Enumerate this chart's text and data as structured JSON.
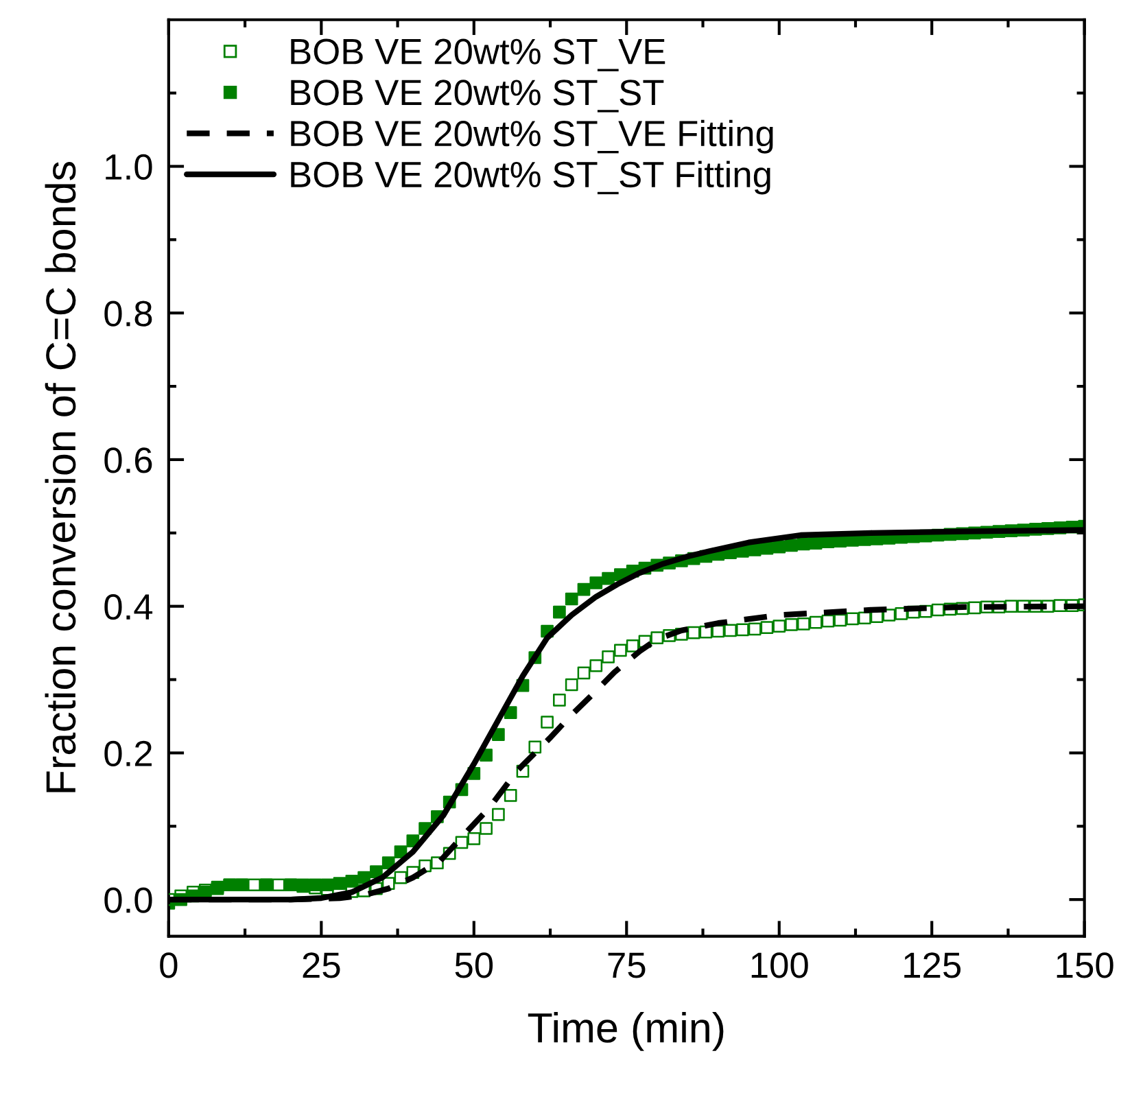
{
  "chart_data": {
    "type": "scatter",
    "xlabel": "Time (min)",
    "ylabel": "Fraction conversion of C=C bonds",
    "xlim": [
      0,
      150
    ],
    "ylim": [
      -0.05,
      1.2
    ],
    "xticks": [
      0,
      25,
      50,
      75,
      100,
      125,
      150
    ],
    "yticks": [
      {
        "value": 0,
        "label": "0.0"
      },
      {
        "value": 0.2,
        "label": "0.2"
      },
      {
        "value": 0.4,
        "label": "0.4"
      },
      {
        "value": 0.6,
        "label": "0.6"
      },
      {
        "value": 0.8,
        "label": "0.8"
      },
      {
        "value": 1.0,
        "label": "1.0"
      }
    ],
    "grid": false,
    "legend": "top left",
    "series": [
      {
        "name": "BOB VE 20wt% ST_VE",
        "marker": "square",
        "color": "#008000",
        "x": [
          0,
          2,
          4,
          6,
          8,
          10,
          12,
          14,
          16,
          18,
          20,
          22,
          24,
          26,
          30,
          32,
          34,
          36,
          38,
          40,
          42,
          44,
          46,
          48,
          50,
          52,
          54,
          56,
          58,
          60,
          62,
          64,
          66,
          68,
          70,
          72,
          74,
          76,
          78,
          80,
          82,
          84,
          86,
          88,
          90,
          92,
          94,
          96,
          98,
          100,
          102,
          104,
          106,
          108,
          110,
          112,
          114,
          116,
          118,
          120,
          122,
          124,
          126,
          128,
          130,
          132,
          134,
          136,
          138,
          140,
          142,
          144,
          146,
          148,
          150
        ],
        "values": [
          0.0,
          0.005,
          0.01,
          0.013,
          0.017,
          0.02,
          0.02,
          0.02,
          0.02,
          0.02,
          0.02,
          0.018,
          0.016,
          0.014,
          0.011,
          0.012,
          0.015,
          0.022,
          0.03,
          0.037,
          0.046,
          0.05,
          0.063,
          0.078,
          0.083,
          0.097,
          0.116,
          0.142,
          0.175,
          0.208,
          0.242,
          0.272,
          0.293,
          0.309,
          0.319,
          0.331,
          0.34,
          0.346,
          0.352,
          0.357,
          0.36,
          0.362,
          0.364,
          0.365,
          0.366,
          0.367,
          0.368,
          0.369,
          0.371,
          0.373,
          0.375,
          0.376,
          0.378,
          0.38,
          0.381,
          0.383,
          0.384,
          0.386,
          0.388,
          0.39,
          0.392,
          0.393,
          0.395,
          0.396,
          0.397,
          0.398,
          0.399,
          0.399,
          0.4,
          0.4,
          0.4,
          0.4,
          0.401,
          0.401,
          0.402
        ]
      },
      {
        "name": "BOB VE 20wt% ST_ST",
        "marker": "square",
        "color": "#008000",
        "x": [
          0,
          2,
          4,
          6,
          8,
          10,
          12,
          16,
          20,
          22,
          24,
          26,
          28,
          30,
          32,
          34,
          36,
          38,
          40,
          42,
          44,
          46,
          48,
          50,
          52,
          54,
          56,
          58,
          60,
          62,
          64,
          66,
          68,
          70,
          72,
          74,
          76,
          78,
          80,
          82,
          84,
          86,
          88,
          90,
          92,
          94,
          96,
          98,
          100,
          102,
          104,
          106,
          108,
          110,
          112,
          114,
          116,
          118,
          120,
          122,
          124,
          126,
          128,
          130,
          132,
          134,
          136,
          138,
          140,
          142,
          144,
          146,
          148,
          150
        ],
        "values": [
          -0.005,
          0.0,
          0.005,
          0.01,
          0.015,
          0.02,
          0.02,
          0.02,
          0.02,
          0.02,
          0.02,
          0.02,
          0.022,
          0.025,
          0.03,
          0.038,
          0.05,
          0.065,
          0.08,
          0.097,
          0.113,
          0.133,
          0.15,
          0.172,
          0.197,
          0.225,
          0.255,
          0.292,
          0.33,
          0.366,
          0.392,
          0.41,
          0.423,
          0.432,
          0.438,
          0.443,
          0.448,
          0.452,
          0.456,
          0.459,
          0.462,
          0.465,
          0.468,
          0.471,
          0.473,
          0.475,
          0.477,
          0.479,
          0.481,
          0.483,
          0.485,
          0.486,
          0.488,
          0.489,
          0.49,
          0.491,
          0.492,
          0.493,
          0.494,
          0.495,
          0.496,
          0.497,
          0.498,
          0.499,
          0.5,
          0.501,
          0.502,
          0.503,
          0.504,
          0.505,
          0.506,
          0.507,
          0.508,
          0.509
        ]
      },
      {
        "name": "BOB VE 20wt% ST_VE Fitting",
        "type": "line",
        "line_style": "dashed",
        "color": "#000000",
        "x": [
          0,
          20,
          28,
          32,
          36,
          40,
          44.5,
          48,
          52.7,
          57,
          62.4,
          66,
          69.7,
          73,
          77.2,
          80,
          84,
          90,
          100,
          115,
          130,
          150
        ],
        "values": [
          0,
          0,
          0.002,
          0.006,
          0.015,
          0.03,
          0.053,
          0.085,
          0.127,
          0.175,
          0.22,
          0.252,
          0.282,
          0.31,
          0.339,
          0.355,
          0.367,
          0.377,
          0.388,
          0.395,
          0.399,
          0.4
        ]
      },
      {
        "name": "BOB VE 20wt% ST_ST Fitting",
        "type": "line",
        "line_style": "solid",
        "color": "#000000",
        "x": [
          0,
          10,
          20,
          25,
          30,
          35,
          40,
          45,
          50,
          55,
          58,
          62,
          66,
          70,
          73.5,
          77,
          81,
          85,
          88.5,
          95,
          103.5,
          115,
          130,
          150
        ],
        "values": [
          0,
          0,
          0,
          0.002,
          0.01,
          0.03,
          0.065,
          0.115,
          0.185,
          0.26,
          0.305,
          0.357,
          0.388,
          0.413,
          0.43,
          0.445,
          0.458,
          0.468,
          0.475,
          0.487,
          0.497,
          0.5,
          0.502,
          0.504
        ]
      }
    ]
  }
}
